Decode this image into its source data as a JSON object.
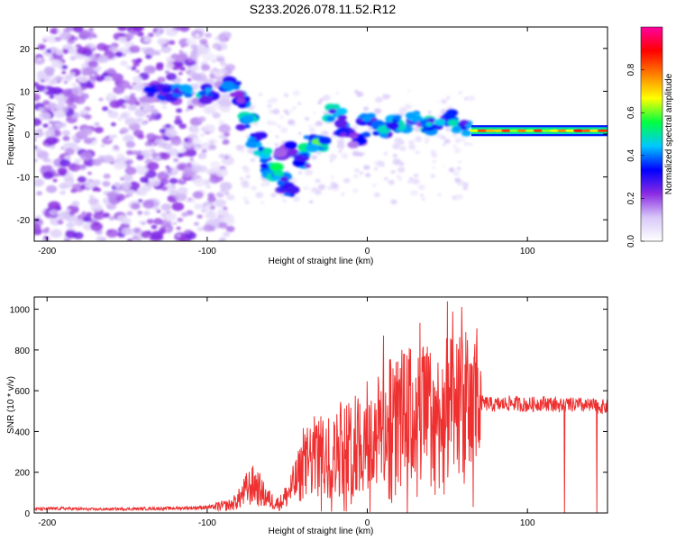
{
  "page": {
    "title": "S233.2026.078.11.52.R12"
  },
  "chart_data": [
    {
      "type": "heatmap",
      "title": "S233.2026.078.11.52.R12",
      "xlabel": "Height of straight line (km)",
      "ylabel": "Frequency (Hz)",
      "xlim": [
        -208,
        150
      ],
      "ylim": [
        -25,
        25
      ],
      "xticks": [
        -200,
        -100,
        0,
        100
      ],
      "yticks": [
        -20,
        -10,
        0,
        10,
        20
      ],
      "colorbar": {
        "label": "Normalized spectral amplitude",
        "range": [
          0,
          1
        ],
        "ticks": [
          0.0,
          0.2,
          0.4,
          0.6,
          0.8
        ],
        "tick_labels": [
          "0.0",
          "0.2",
          "0.4",
          "0.6",
          "0.8"
        ],
        "colormap": [
          "#ffffff",
          "#d8c8f8",
          "#8a2be2",
          "#0000ff",
          "#00c8ff",
          "#00ff40",
          "#ffff00",
          "#ff8000",
          "#ff0000",
          "#ff00a0"
        ]
      },
      "ridge": [
        {
          "x": -135,
          "f": 9.5,
          "a": 0.35
        },
        {
          "x": -125,
          "f": 10.0,
          "a": 0.4
        },
        {
          "x": -115,
          "f": 9.5,
          "a": 0.45
        },
        {
          "x": -100,
          "f": 9.5,
          "a": 0.5
        },
        {
          "x": -85,
          "f": 12.0,
          "a": 0.5
        },
        {
          "x": -80,
          "f": 8.0,
          "a": 0.45
        },
        {
          "x": -75,
          "f": 3.0,
          "a": 0.5
        },
        {
          "x": -70,
          "f": -1.0,
          "a": 0.5
        },
        {
          "x": -65,
          "f": -5.0,
          "a": 0.5
        },
        {
          "x": -60,
          "f": -8.0,
          "a": 0.55
        },
        {
          "x": -55,
          "f": -10.5,
          "a": 0.5
        },
        {
          "x": -50,
          "f": -13.0,
          "a": 0.45
        },
        {
          "x": -50,
          "f": -4.0,
          "a": 0.4
        },
        {
          "x": -40,
          "f": -6.0,
          "a": 0.45
        },
        {
          "x": -35,
          "f": -2.0,
          "a": 0.55
        },
        {
          "x": -30,
          "f": -2.5,
          "a": 0.6
        },
        {
          "x": -20,
          "f": 5.0,
          "a": 0.5
        },
        {
          "x": -15,
          "f": 1.0,
          "a": 0.45
        },
        {
          "x": -5,
          "f": -1.0,
          "a": 0.4
        },
        {
          "x": 0,
          "f": 3.5,
          "a": 0.5
        },
        {
          "x": 10,
          "f": 1.0,
          "a": 0.5
        },
        {
          "x": 20,
          "f": 2.5,
          "a": 0.5
        },
        {
          "x": 30,
          "f": 3.5,
          "a": 0.45
        },
        {
          "x": 40,
          "f": 2.0,
          "a": 0.5
        },
        {
          "x": 50,
          "f": 3.5,
          "a": 0.5
        },
        {
          "x": 60,
          "f": 1.5,
          "a": 0.5
        }
      ],
      "band": {
        "x_start": 65,
        "x_end": 150,
        "f_center": 0.8,
        "f_halfwidth": 0.8,
        "a": 0.75
      }
    },
    {
      "type": "line",
      "xlabel": "Height of straight line (km)",
      "ylabel": "SNR (10 * v/v)",
      "xlim": [
        -208,
        150
      ],
      "ylim": [
        0,
        1060
      ],
      "xticks": [
        -200,
        -100,
        0,
        100
      ],
      "yticks": [
        0,
        200,
        400,
        600,
        800,
        1000
      ],
      "line_color": "#ee3030",
      "series": [
        {
          "name": "SNR",
          "x": [
            -208,
            -190,
            -170,
            -150,
            -130,
            -110,
            -95,
            -85,
            -80,
            -75,
            -70,
            -65,
            -60,
            -55,
            -50,
            -45,
            -40,
            -35,
            -30,
            -25,
            -20,
            -15,
            -10,
            -5,
            0,
            5,
            10,
            15,
            20,
            25,
            30,
            35,
            40,
            45,
            50,
            55,
            60,
            65,
            70,
            71,
            80,
            90,
            100,
            110,
            120,
            130,
            140,
            150
          ],
          "y": [
            20,
            22,
            18,
            20,
            22,
            25,
            30,
            40,
            70,
            120,
            140,
            90,
            60,
            45,
            90,
            150,
            220,
            270,
            280,
            250,
            280,
            330,
            310,
            350,
            330,
            380,
            420,
            440,
            460,
            480,
            450,
            490,
            470,
            460,
            500,
            480,
            520,
            500,
            480,
            540,
            530,
            540,
            530,
            540,
            530,
            530,
            525,
            520
          ]
        }
      ]
    }
  ]
}
